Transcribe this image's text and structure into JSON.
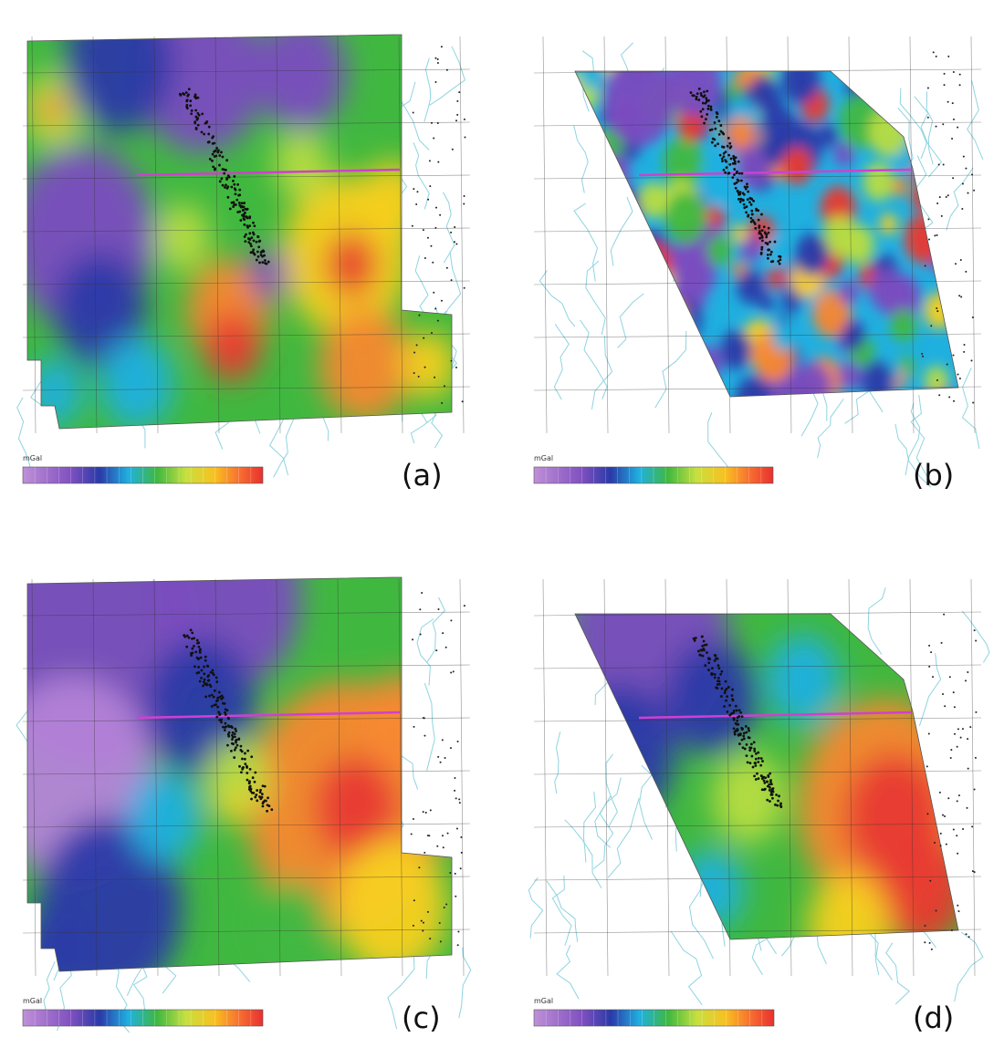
{
  "panels": [
    {
      "label": "(a)",
      "colorbar_title": "mGal"
    },
    {
      "label": "(b)",
      "colorbar_title": "mGal"
    },
    {
      "label": "(c)",
      "colorbar_title": "mGal"
    },
    {
      "label": "(d)",
      "colorbar_title": "mGal"
    }
  ]
}
